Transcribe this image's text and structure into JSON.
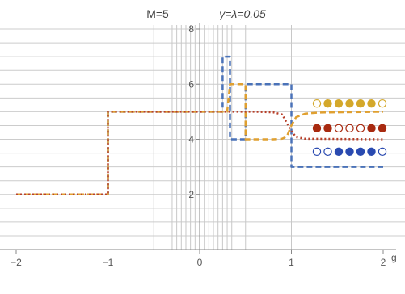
{
  "chart_data": {
    "type": "line",
    "title_left": "M=5",
    "title_right": "γ=λ=0.05",
    "xlabel": "g",
    "ylabel": "",
    "xlim": [
      -2,
      2
    ],
    "ylim": [
      0,
      8
    ],
    "x_ticks": [
      -2,
      -1,
      0,
      1,
      2
    ],
    "y_ticks": [
      2,
      4,
      6,
      8
    ],
    "grid": true,
    "vertical_lines": [
      -1,
      -0.5,
      -0.3,
      -0.25,
      -0.2,
      -0.15,
      -0.1,
      -0.05,
      0.05,
      0.1,
      0.15,
      0.2,
      0.25,
      0.3,
      0.35,
      0.5,
      1
    ],
    "horizontal_gridlines": [
      0.5,
      1,
      1.5,
      2.5,
      3,
      3.5,
      4.5,
      5,
      5.5,
      6.5,
      7,
      7.5
    ],
    "series": [
      {
        "color": "#4a72b8",
        "dash": "dashed",
        "points": [
          [
            -2,
            2
          ],
          [
            -1,
            2
          ],
          [
            -1,
            5
          ],
          [
            0.25,
            5
          ],
          [
            0.25,
            7
          ],
          [
            0.33,
            7
          ],
          [
            0.33,
            4
          ],
          [
            0.5,
            4
          ],
          [
            0.5,
            6
          ],
          [
            1,
            6
          ],
          [
            1,
            3
          ],
          [
            2,
            3
          ]
        ]
      },
      {
        "color": "#e0a030",
        "dash": "dashed",
        "points": [
          [
            -2,
            2
          ],
          [
            -1,
            2
          ],
          [
            -1,
            5
          ],
          [
            0.3,
            5
          ],
          [
            0.33,
            6
          ],
          [
            0.5,
            6
          ],
          [
            0.5,
            4
          ],
          [
            0.8,
            4
          ],
          [
            0.9,
            4.02
          ],
          [
            0.95,
            4.1
          ],
          [
            1.0,
            4.5
          ],
          [
            1.05,
            4.8
          ],
          [
            1.15,
            4.93
          ],
          [
            1.3,
            4.97
          ],
          [
            2,
            5
          ]
        ]
      },
      {
        "color": "#b8402a",
        "dash": "dotted",
        "points": [
          [
            -2,
            2
          ],
          [
            -1,
            2
          ],
          [
            -1,
            5
          ],
          [
            0.6,
            5
          ],
          [
            0.8,
            4.98
          ],
          [
            0.9,
            4.9
          ],
          [
            0.95,
            4.6
          ],
          [
            1.0,
            4.3
          ],
          [
            1.05,
            4.08
          ],
          [
            1.15,
            4.02
          ],
          [
            2,
            4
          ]
        ]
      }
    ],
    "occupation_rows": [
      {
        "y": 5.3,
        "color": "#d4a82a",
        "pattern": [
          0,
          1,
          1,
          1,
          1,
          1,
          0
        ]
      },
      {
        "y": 4.4,
        "color": "#a82a10",
        "pattern": [
          1,
          1,
          0,
          0,
          0,
          1,
          1
        ]
      },
      {
        "y": 3.55,
        "color": "#2a4ab0",
        "pattern": [
          0,
          0,
          1,
          1,
          1,
          1,
          0
        ]
      }
    ]
  }
}
